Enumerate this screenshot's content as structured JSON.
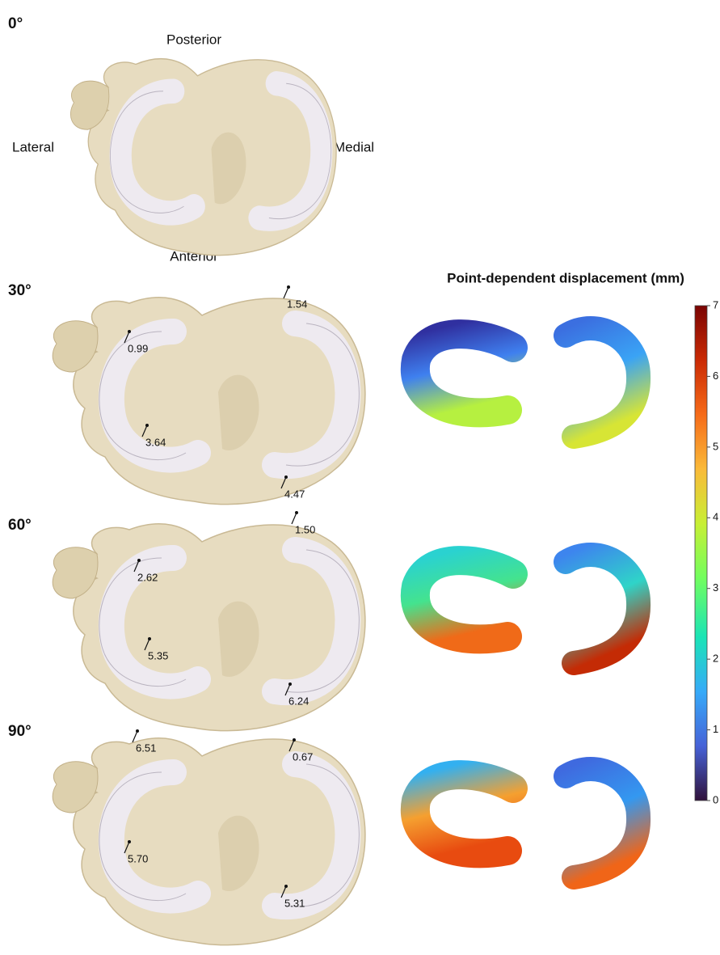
{
  "orientation": {
    "posterior": "Posterior",
    "lateral": "Lateral",
    "medial": "Medial",
    "anterior": "Anterior"
  },
  "panels": [
    {
      "angle": "0°",
      "measurements": []
    },
    {
      "angle": "30°",
      "measurements": [
        "0.99",
        "1.54",
        "3.64",
        "4.47"
      ]
    },
    {
      "angle": "60°",
      "measurements": [
        "2.62",
        "1.50",
        "5.35",
        "6.24"
      ]
    },
    {
      "angle": "90°",
      "measurements": [
        "6.51",
        "0.67",
        "5.70",
        "5.31"
      ]
    }
  ],
  "colorbar": {
    "title": "Point-dependent displacement (mm)",
    "range": [
      0,
      7
    ],
    "ticks": [
      0,
      1,
      2,
      3,
      4,
      5,
      6,
      7
    ]
  }
}
